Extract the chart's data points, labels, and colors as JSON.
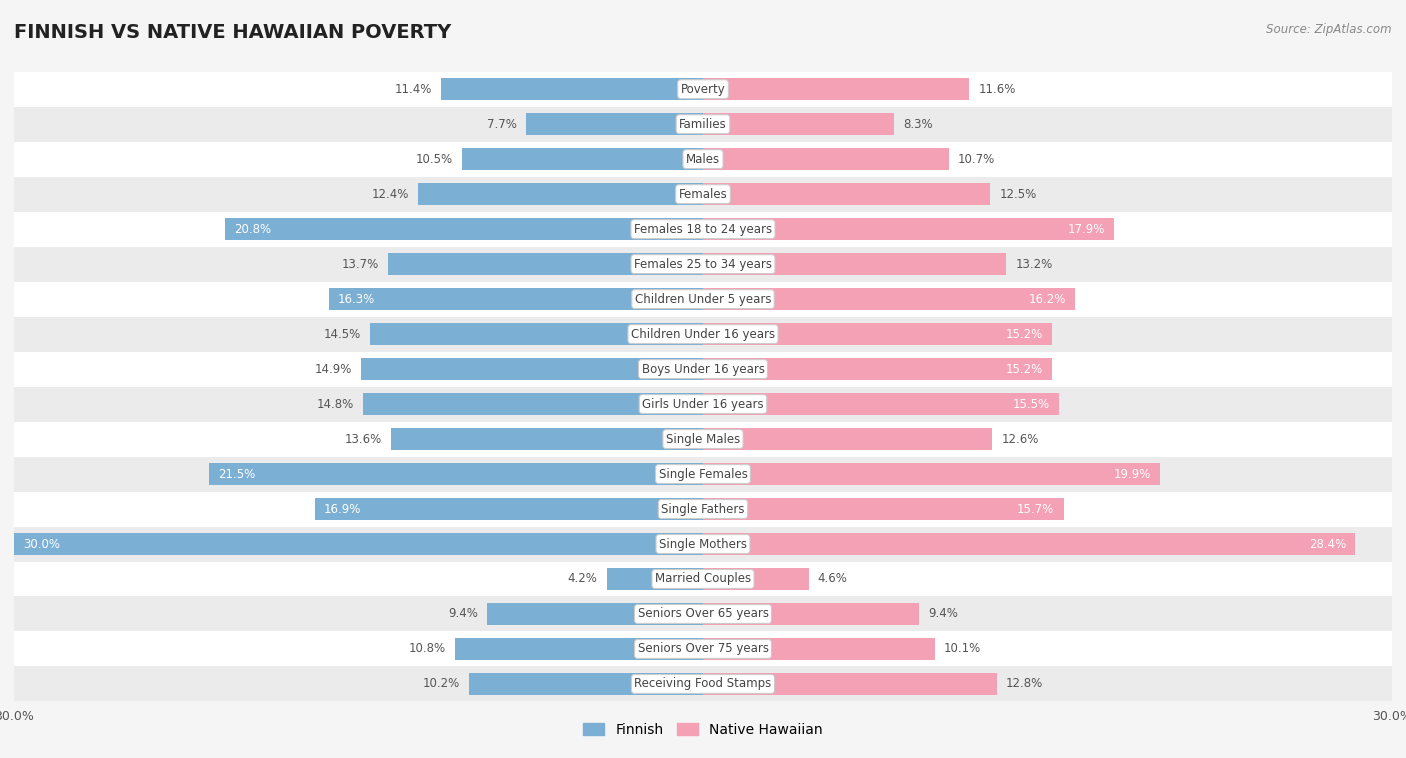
{
  "title": "FINNISH VS NATIVE HAWAIIAN POVERTY",
  "source": "Source: ZipAtlas.com",
  "categories": [
    "Poverty",
    "Families",
    "Males",
    "Females",
    "Females 18 to 24 years",
    "Females 25 to 34 years",
    "Children Under 5 years",
    "Children Under 16 years",
    "Boys Under 16 years",
    "Girls Under 16 years",
    "Single Males",
    "Single Females",
    "Single Fathers",
    "Single Mothers",
    "Married Couples",
    "Seniors Over 65 years",
    "Seniors Over 75 years",
    "Receiving Food Stamps"
  ],
  "finnish": [
    11.4,
    7.7,
    10.5,
    12.4,
    20.8,
    13.7,
    16.3,
    14.5,
    14.9,
    14.8,
    13.6,
    21.5,
    16.9,
    30.0,
    4.2,
    9.4,
    10.8,
    10.2
  ],
  "native_hawaiian": [
    11.6,
    8.3,
    10.7,
    12.5,
    17.9,
    13.2,
    16.2,
    15.2,
    15.2,
    15.5,
    12.6,
    19.9,
    15.7,
    28.4,
    4.6,
    9.4,
    10.1,
    12.8
  ],
  "finnish_color": "#7bafd4",
  "native_hawaiian_color": "#f4a0b5",
  "bar_height": 0.62,
  "max_val": 30.0,
  "background_color": "#f5f5f5",
  "row_even_color": "#ffffff",
  "row_odd_color": "#ebebeb",
  "title_fontsize": 14,
  "label_fontsize": 8.5,
  "value_fontsize": 8.5,
  "white_text_threshold": 15.0,
  "x_axis_label": "30.0%"
}
